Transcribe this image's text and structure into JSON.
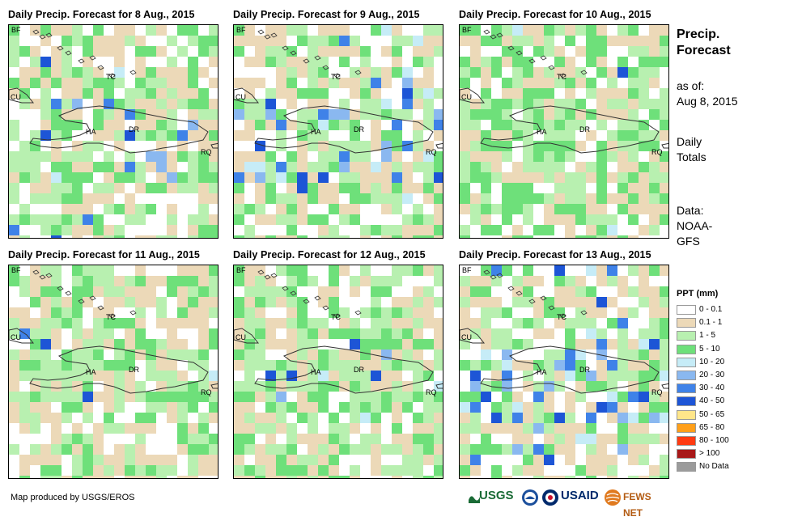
{
  "panels": [
    {
      "title": "Daily Precip. Forecast for 8 Aug., 2015"
    },
    {
      "title": "Daily Precip. Forecast for 9 Aug., 2015"
    },
    {
      "title": "Daily Precip. Forecast for 10 Aug., 2015"
    },
    {
      "title": "Daily Precip. Forecast for 11 Aug., 2015"
    },
    {
      "title": "Daily Precip. Forecast for 12 Aug., 2015"
    },
    {
      "title": "Daily Precip. Forecast for 13 Aug., 2015"
    }
  ],
  "map_labels": {
    "bf": "BF",
    "cu": "CU",
    "tc": "TC",
    "ha": "HA",
    "dr": "DR",
    "rq": "RQ"
  },
  "side": {
    "title": "Precip. Forecast",
    "as_of_label": "as of:",
    "as_of_date": "Aug 8, 2015",
    "totals_line1": "Daily",
    "totals_line2": "Totals",
    "data_label": "Data:",
    "data_source_line1": "NOAA-",
    "data_source_line2": "GFS"
  },
  "legend": {
    "title": "PPT (mm)",
    "items": [
      {
        "label": "0 - 0.1",
        "color": "#ffffff"
      },
      {
        "label": "0.1 - 1",
        "color": "#ecd9b8"
      },
      {
        "label": "1 - 5",
        "color": "#b8f0b0"
      },
      {
        "label": "5 - 10",
        "color": "#6ee07a"
      },
      {
        "label": "10 - 20",
        "color": "#c6ecf7"
      },
      {
        "label": "20 - 30",
        "color": "#8ab8f0"
      },
      {
        "label": "30 - 40",
        "color": "#3f82e8"
      },
      {
        "label": "40 - 50",
        "color": "#1d55d6"
      },
      {
        "label": "50 - 65",
        "color": "#ffe68a"
      },
      {
        "label": "65 - 80",
        "color": "#ff9f1a"
      },
      {
        "label": "80 - 100",
        "color": "#ff3b12"
      },
      {
        "label": "> 100",
        "color": "#a81818"
      },
      {
        "label": "No Data",
        "color": "#9b9b9b"
      }
    ]
  },
  "credit": "Map produced by USGS/EROS",
  "logos": {
    "usgs": "USGS",
    "usaid": "USAID",
    "fews": "FEWS NET"
  }
}
